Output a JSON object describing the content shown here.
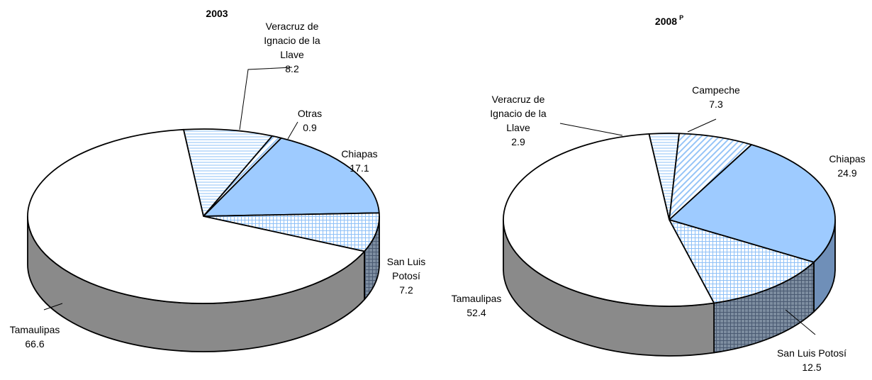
{
  "chart_data": [
    {
      "type": "pie",
      "title": "2003",
      "title_superscript": "",
      "slices": [
        {
          "name": "Veracruz de Ignacio de la Llave",
          "label_lines": [
            "Veracruz de",
            "Ignacio de la",
            "Llave"
          ],
          "value": 8.2,
          "pattern": "horizontal-lines",
          "color": "#9ec9ff"
        },
        {
          "name": "Otras",
          "label_lines": [
            "Otras"
          ],
          "value": 0.9,
          "pattern": "diagonal-lines",
          "color": "#9ec9ff"
        },
        {
          "name": "Chiapas",
          "label_lines": [
            "Chiapas"
          ],
          "value": 17.1,
          "pattern": "solid",
          "color": "#9ecbff"
        },
        {
          "name": "San Luis Potosí",
          "label_lines": [
            "San Luis",
            "Potosí"
          ],
          "value": 7.2,
          "pattern": "grid",
          "color": "#9ec9ff"
        },
        {
          "name": "Tamaulipas",
          "label_lines": [
            "Tamaulipas"
          ],
          "value": 66.6,
          "pattern": "solid",
          "color": "#ffffff"
        }
      ]
    },
    {
      "type": "pie",
      "title": "2008",
      "title_superscript": "P",
      "slices": [
        {
          "name": "Veracruz de Ignacio de la Llave",
          "label_lines": [
            "Veracruz de",
            "Ignacio de la",
            "Llave"
          ],
          "value": 2.9,
          "pattern": "horizontal-lines",
          "color": "#9ec9ff"
        },
        {
          "name": "Campeche",
          "label_lines": [
            "Campeche"
          ],
          "value": 7.3,
          "pattern": "diagonal-lines",
          "color": "#9ec9ff"
        },
        {
          "name": "Chiapas",
          "label_lines": [
            "Chiapas"
          ],
          "value": 24.9,
          "pattern": "solid",
          "color": "#9ecbff"
        },
        {
          "name": "San Luis Potosí",
          "label_lines": [
            "San Luis Potosí"
          ],
          "value": 12.5,
          "pattern": "grid",
          "color": "#9ec9ff"
        },
        {
          "name": "Tamaulipas",
          "label_lines": [
            "Tamaulipas"
          ],
          "value": 52.4,
          "pattern": "solid",
          "color": "#ffffff"
        }
      ]
    }
  ]
}
